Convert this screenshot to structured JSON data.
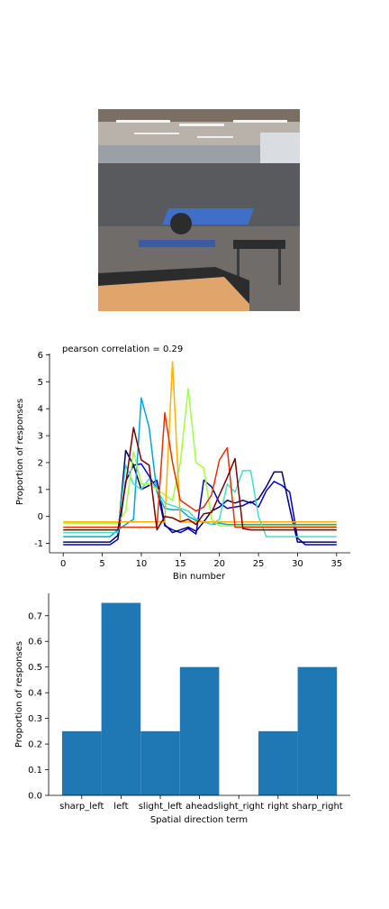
{
  "photo": {
    "alt": "Gym photo"
  },
  "charts": {
    "line": {
      "annotation": "pearson correlation = 0.29",
      "xlabel": "Bin number",
      "ylabel": "Proportion of responses"
    },
    "bar": {
      "xlabel": "Spatial direction term",
      "ylabel": "Proportion of responses"
    }
  },
  "chart_data": [
    {
      "type": "line",
      "title": "",
      "annotation": "pearson correlation = 0.29",
      "xlabel": "Bin number",
      "ylabel": "Proportion of responses",
      "xlim": [
        -1.75,
        36.75
      ],
      "ylim": [
        -1.35,
        6.05
      ],
      "xticks": [
        0,
        5,
        10,
        15,
        20,
        25,
        30,
        35
      ],
      "yticks": [
        -1,
        0,
        1,
        2,
        3,
        4,
        5,
        6
      ],
      "x": [
        0,
        1,
        2,
        3,
        4,
        5,
        6,
        7,
        8,
        9,
        10,
        11,
        12,
        13,
        14,
        15,
        16,
        17,
        18,
        19,
        20,
        21,
        22,
        23,
        24,
        25,
        26,
        27,
        28,
        29,
        30,
        31,
        32,
        33,
        34,
        35
      ],
      "series": [
        {
          "color": "#0000cd",
          "values": [
            -1.05,
            -1.05,
            -1.05,
            -1.05,
            -1.05,
            -1.05,
            -1.05,
            -0.85,
            1.3,
            1.9,
            1.95,
            1.5,
            1.0,
            -0.35,
            -0.5,
            -0.6,
            -0.45,
            -0.65,
            1.35,
            1.1,
            0.5,
            0.3,
            0.35,
            0.4,
            0.55,
            0.35,
            0.95,
            1.3,
            1.15,
            0.9,
            -0.8,
            -1.05,
            -1.05,
            -1.05,
            -1.05,
            -1.05
          ]
        },
        {
          "color": "#000070",
          "values": [
            -0.95,
            -0.95,
            -0.95,
            -0.95,
            -0.95,
            -0.95,
            -0.95,
            -0.7,
            2.45,
            1.9,
            1.0,
            1.15,
            1.35,
            -0.3,
            -0.6,
            -0.5,
            -0.4,
            -0.55,
            -0.2,
            0.2,
            0.35,
            0.6,
            0.5,
            0.6,
            0.5,
            0.65,
            1.1,
            1.65,
            1.65,
            0.3,
            -0.95,
            -0.95,
            -0.95,
            -0.95,
            -0.95,
            -0.95
          ]
        },
        {
          "color": "#00a5e0",
          "values": [
            -0.75,
            -0.75,
            -0.75,
            -0.75,
            -0.75,
            -0.75,
            -0.75,
            -0.5,
            -0.3,
            -0.1,
            4.4,
            3.3,
            0.9,
            0.3,
            0.25,
            0.25,
            0.0,
            -0.15,
            -0.2,
            -0.3,
            -0.25,
            -0.3,
            -0.3,
            -0.3,
            -0.3,
            -0.3,
            -0.3,
            -0.3,
            -0.3,
            -0.3,
            -0.3,
            -0.3,
            -0.3,
            -0.3,
            -0.3,
            -0.3
          ]
        },
        {
          "color": "#40e0c8",
          "values": [
            -0.6,
            -0.6,
            -0.6,
            -0.6,
            -0.6,
            -0.6,
            -0.6,
            -0.6,
            1.9,
            1.2,
            1.0,
            1.4,
            1.0,
            0.5,
            0.4,
            0.3,
            0.2,
            -0.1,
            -0.2,
            -0.3,
            -0.1,
            1.2,
            0.9,
            1.7,
            1.7,
            0.0,
            -0.75,
            -0.75,
            -0.75,
            -0.75,
            -0.75,
            -0.75,
            -0.75,
            -0.75,
            -0.75,
            -0.75
          ]
        },
        {
          "color": "#a0ff40",
          "values": [
            -0.25,
            -0.25,
            -0.25,
            -0.25,
            -0.25,
            -0.25,
            -0.25,
            -0.25,
            0.2,
            2.4,
            1.2,
            1.2,
            1.0,
            0.8,
            0.6,
            2.0,
            4.75,
            2.0,
            1.8,
            -0.1,
            -0.35,
            -0.35,
            -0.35,
            -0.35,
            -0.35,
            -0.35,
            -0.35,
            -0.35,
            -0.35,
            -0.35,
            -0.35,
            -0.35,
            -0.35,
            -0.35,
            -0.35,
            -0.35
          ]
        },
        {
          "color": "#ffb000",
          "values": [
            -0.2,
            -0.2,
            -0.2,
            -0.2,
            -0.2,
            -0.2,
            -0.2,
            -0.2,
            -0.2,
            -0.2,
            -0.2,
            -0.2,
            -0.2,
            -0.2,
            5.75,
            -0.2,
            -0.2,
            -0.2,
            -0.2,
            -0.2,
            -0.2,
            -0.2,
            -0.2,
            -0.2,
            -0.2,
            -0.2,
            -0.2,
            -0.2,
            -0.2,
            -0.2,
            -0.2,
            -0.2,
            -0.2,
            -0.2,
            -0.2,
            -0.2
          ]
        },
        {
          "color": "#e83000",
          "values": [
            -0.4,
            -0.4,
            -0.4,
            -0.4,
            -0.4,
            -0.4,
            -0.4,
            -0.4,
            -0.4,
            -0.4,
            -0.4,
            -0.4,
            -0.4,
            3.85,
            2.0,
            0.6,
            0.4,
            0.2,
            0.35,
            0.8,
            2.1,
            2.55,
            -0.4,
            -0.4,
            -0.4,
            -0.4,
            -0.4,
            -0.4,
            -0.4,
            -0.4,
            -0.4,
            -0.4,
            -0.4,
            -0.4,
            -0.4,
            -0.4
          ]
        },
        {
          "color": "#7a0000",
          "values": [
            -0.5,
            -0.5,
            -0.5,
            -0.5,
            -0.5,
            -0.5,
            -0.5,
            -0.5,
            1.2,
            3.3,
            2.1,
            1.9,
            -0.5,
            0.0,
            -0.05,
            -0.2,
            -0.1,
            -0.3,
            0.1,
            0.15,
            0.8,
            1.45,
            2.15,
            -0.45,
            -0.5,
            -0.5,
            -0.5,
            -0.5,
            -0.5,
            -0.5,
            -0.5,
            -0.5,
            -0.5,
            -0.5,
            -0.5,
            -0.5
          ]
        }
      ]
    },
    {
      "type": "bar",
      "title": "",
      "xlabel": "Spatial direction term",
      "ylabel": "Proportion of responses",
      "ylim": [
        0,
        0.787
      ],
      "yticks": [
        0.0,
        0.1,
        0.2,
        0.3,
        0.4,
        0.5,
        0.6,
        0.7
      ],
      "categories": [
        "sharp_left",
        "left",
        "slight_left",
        "ahead",
        "slight_right",
        "right",
        "sharp_right"
      ],
      "values": [
        0.25,
        0.75,
        0.25,
        0.5,
        0.0,
        0.25,
        0.5
      ],
      "bar_color": "#1f77b4"
    }
  ]
}
